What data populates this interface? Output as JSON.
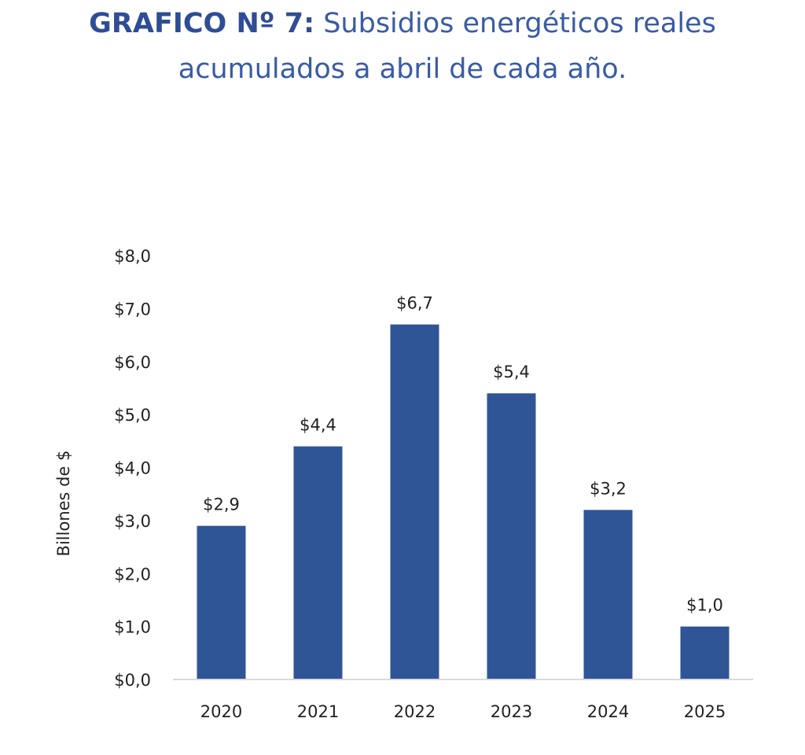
{
  "title": {
    "prefix": "GRAFICO Nº 7:",
    "line1_rest": "Subsidios energéticos reales",
    "line2": "acumulados a abril de cada año."
  },
  "colors": {
    "title_prefix": "#2f4d95",
    "title_text": "#3a5ba5",
    "bar": "#2f5597",
    "axis_line": "#d9d9d9",
    "text": "#222222"
  },
  "chart_data": {
    "type": "bar",
    "categories": [
      "2020",
      "2021",
      "2022",
      "2023",
      "2024",
      "2025"
    ],
    "values": [
      2.9,
      4.4,
      6.7,
      5.4,
      3.2,
      1.0
    ],
    "data_labels": [
      "$2,9",
      "$4,4",
      "$6,7",
      "$5,4",
      "$3,2",
      "$1,0"
    ],
    "ylabel": "Billones de $",
    "xlabel": "",
    "ylim": [
      0,
      8
    ],
    "yticks": [
      0,
      1,
      2,
      3,
      4,
      5,
      6,
      7,
      8
    ],
    "ytick_labels": [
      "$0,0",
      "$1,0",
      "$2,0",
      "$3,0",
      "$4,0",
      "$5,0",
      "$6,0",
      "$7,0",
      "$8,0"
    ],
    "grid": false,
    "legend": "none"
  }
}
